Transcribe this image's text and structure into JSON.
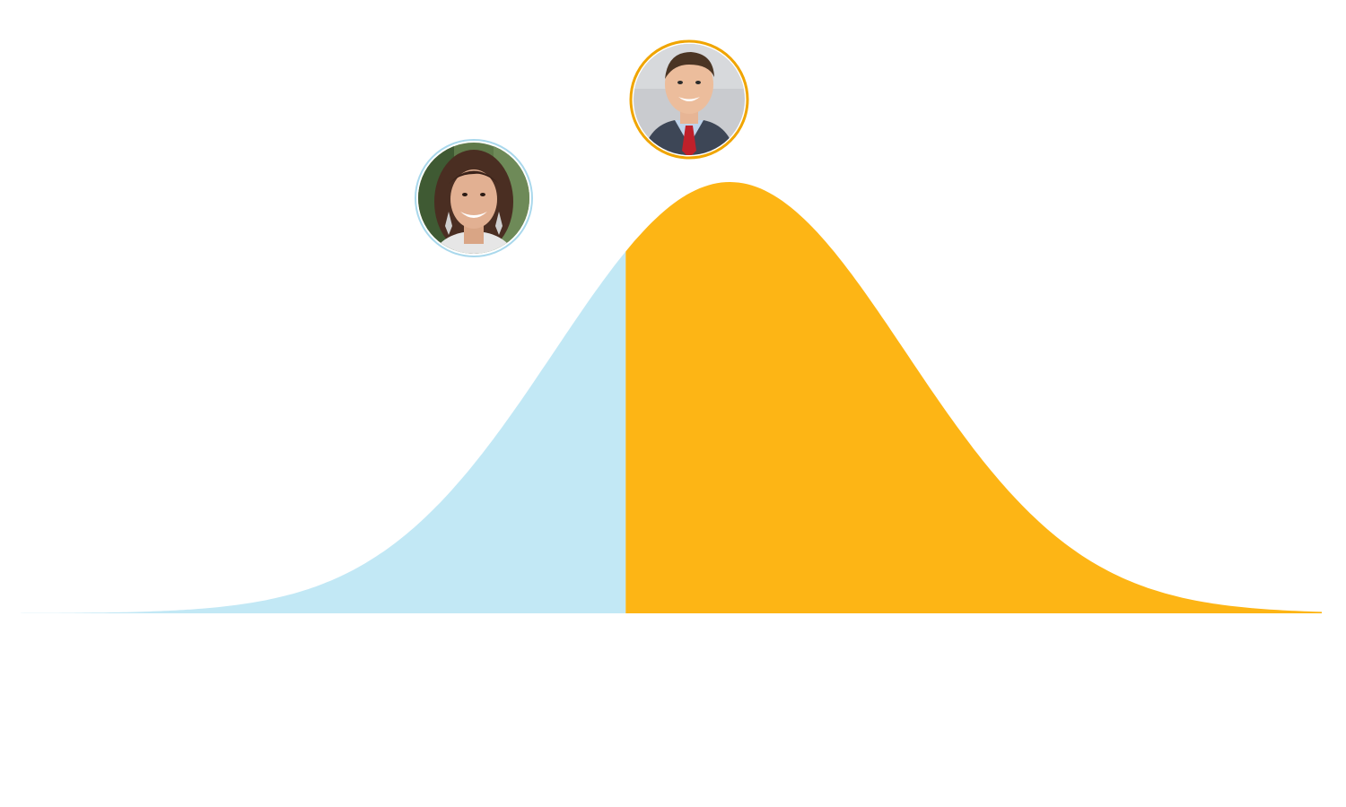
{
  "chart_data": {
    "type": "area",
    "title": "",
    "xlabel": "",
    "ylabel": "",
    "grid": false,
    "legend": "none",
    "distribution": {
      "shape": "normal",
      "mean": 0.09,
      "sd": 0.27,
      "xlim": [
        -1.0,
        1.0
      ]
    },
    "split_at": -0.07,
    "series": [
      {
        "color": "#c2e8f5",
        "x_range": [
          -1.0,
          -0.07
        ]
      },
      {
        "color": "#fdb515",
        "x_range": [
          -0.07,
          1.0
        ]
      }
    ],
    "markers": [
      {
        "icon": "portrait-woman-icon",
        "x": -0.3,
        "ring_color": "#a9d8ec"
      },
      {
        "icon": "portrait-man-icon",
        "x": 0.02,
        "ring_color": "#f0a500"
      }
    ]
  }
}
